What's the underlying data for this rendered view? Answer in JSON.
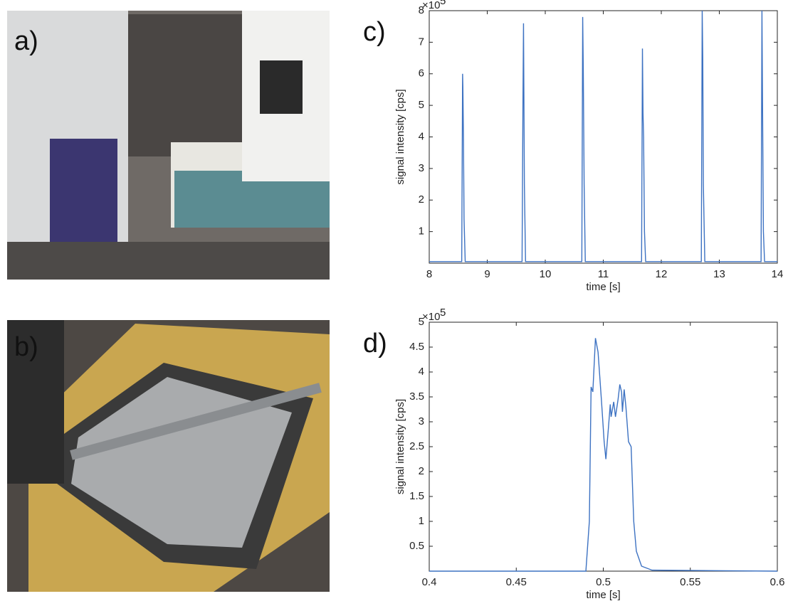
{
  "panels": [
    "a)",
    "b)"
  ],
  "chart_data": [
    {
      "type": "line",
      "label": "c)",
      "xlabel": "time [s]",
      "ylabel": "signal intensity [cps]",
      "y_scale_base": "×10",
      "y_scale_power": "5",
      "color": "#3d72c2",
      "xlim": [
        8,
        14
      ],
      "xticks": [
        8,
        9,
        10,
        11,
        12,
        13,
        14
      ],
      "ylim": [
        0,
        8
      ],
      "yticks": [
        1,
        2,
        3,
        4,
        5,
        6,
        7,
        8
      ],
      "x": [
        8.0,
        8.56,
        8.575,
        8.58,
        8.59,
        8.6,
        8.62,
        9.6,
        9.615,
        9.625,
        9.64,
        9.66,
        10.63,
        10.645,
        10.655,
        10.67,
        10.69,
        11.66,
        11.675,
        11.685,
        11.695,
        11.71,
        11.73,
        12.69,
        12.705,
        12.715,
        12.725,
        12.75,
        13.72,
        13.735,
        13.745,
        13.76,
        13.78,
        14.0
      ],
      "values": [
        0.05,
        0.05,
        6.0,
        5.6,
        3.9,
        1.4,
        0.05,
        0.05,
        5.0,
        7.6,
        2.5,
        0.05,
        0.05,
        7.8,
        6.2,
        2.5,
        0.05,
        0.05,
        6.8,
        4.75,
        4.0,
        1.0,
        0.05,
        0.05,
        8.0,
        6.5,
        2.5,
        0.05,
        0.05,
        8.0,
        5.1,
        1.0,
        0.05,
        0.05
      ]
    },
    {
      "type": "line",
      "label": "d)",
      "xlabel": "time [s]",
      "ylabel": "signal intensity [cps]",
      "y_scale_base": "×10",
      "y_scale_power": "5",
      "color": "#3d72c2",
      "xlim": [
        0.4,
        0.6
      ],
      "xticks": [
        0.4,
        0.45,
        0.5,
        0.55,
        0.6
      ],
      "ylim": [
        0,
        5
      ],
      "yticks": [
        0.5,
        1,
        1.5,
        2,
        2.5,
        3,
        3.5,
        4,
        4.5,
        5
      ],
      "x": [
        0.4,
        0.49,
        0.492,
        0.493,
        0.494,
        0.4955,
        0.497,
        0.499,
        0.5005,
        0.5015,
        0.503,
        0.504,
        0.5045,
        0.506,
        0.507,
        0.5085,
        0.5095,
        0.5105,
        0.511,
        0.512,
        0.513,
        0.5145,
        0.516,
        0.5175,
        0.519,
        0.522,
        0.528,
        0.6
      ],
      "values": [
        0,
        0,
        1.0,
        3.7,
        3.6,
        4.68,
        4.4,
        3.4,
        2.6,
        2.25,
        2.9,
        3.35,
        3.1,
        3.4,
        3.1,
        3.45,
        3.75,
        3.6,
        3.2,
        3.65,
        3.3,
        2.6,
        2.5,
        1.0,
        0.4,
        0.1,
        0.02,
        0
      ]
    }
  ]
}
